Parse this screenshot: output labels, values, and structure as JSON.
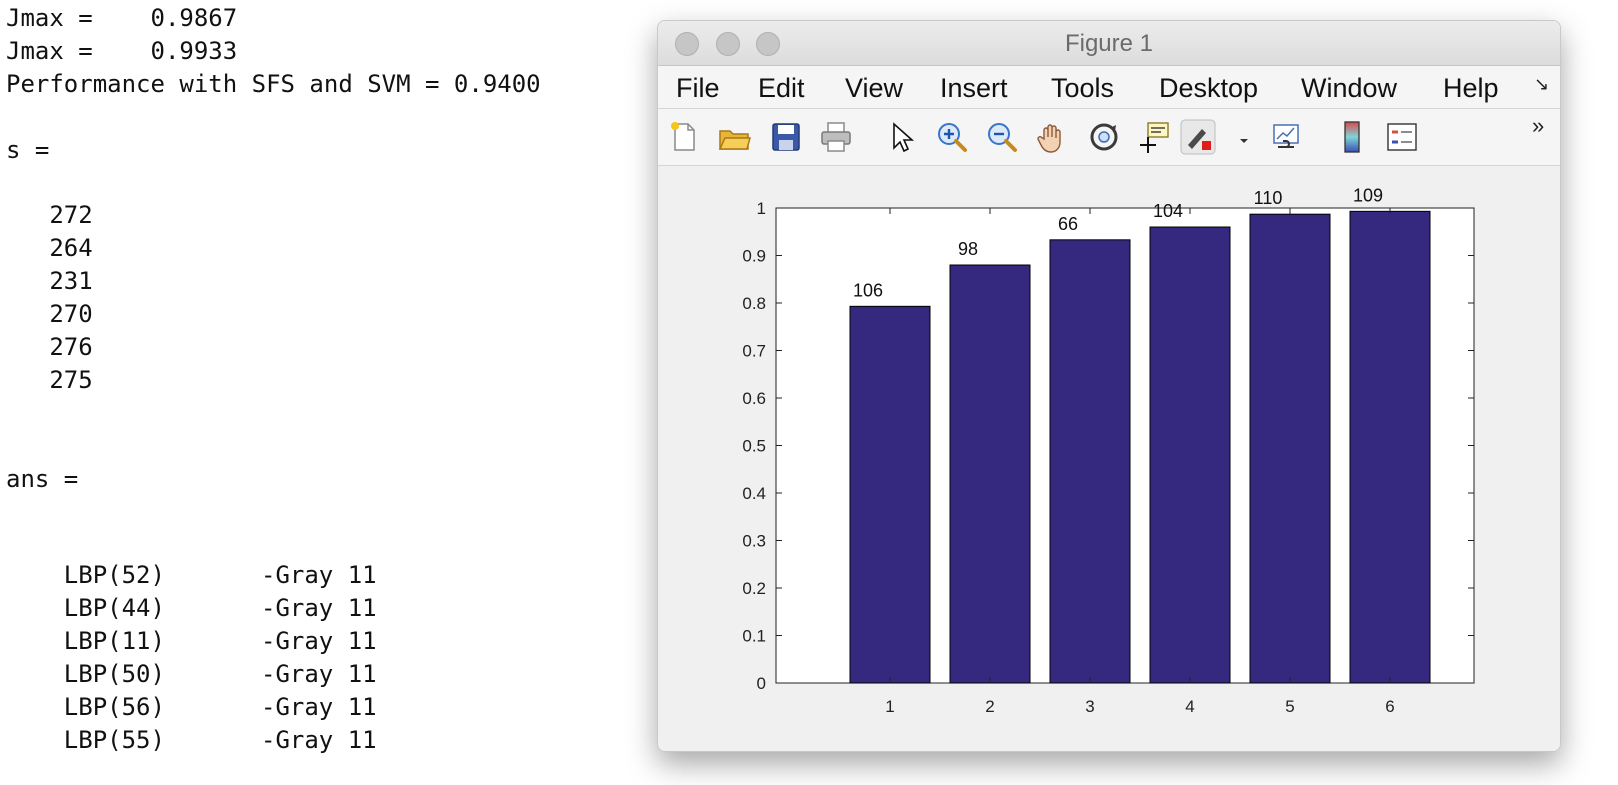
{
  "console": {
    "lines": [
      "Jmax =    0.9867",
      "Jmax =    0.9933",
      "Performance with SFS and SVM = 0.9400",
      "s =",
      "   272",
      "   264",
      "   231",
      "   270",
      "   276",
      "   275",
      "ans ="
    ],
    "feature_rows": [
      {
        "name": "LBP(52)",
        "desc": "-Gray 11"
      },
      {
        "name": "LBP(44)",
        "desc": "-Gray 11"
      },
      {
        "name": "LBP(11)",
        "desc": "-Gray 11"
      },
      {
        "name": "LBP(50)",
        "desc": "-Gray 11"
      },
      {
        "name": "LBP(56)",
        "desc": "-Gray 11"
      },
      {
        "name": "LBP(55)",
        "desc": "-Gray 11"
      }
    ]
  },
  "window": {
    "title": "Figure 1",
    "menu": [
      "File",
      "Edit",
      "View",
      "Insert",
      "Tools",
      "Desktop",
      "Window",
      "Help"
    ],
    "menu_overflow": "↘",
    "toolbar_overflow": "»",
    "tools": [
      {
        "icon": "new-figure-icon",
        "label": ""
      },
      {
        "icon": "open-file-icon",
        "label": ""
      },
      {
        "icon": "save-icon",
        "label": ""
      },
      {
        "icon": "print-icon",
        "label": ""
      },
      {
        "icon": "pointer-icon",
        "label": ""
      },
      {
        "icon": "zoom-in-icon",
        "label": ""
      },
      {
        "icon": "zoom-out-icon",
        "label": ""
      },
      {
        "icon": "pan-hand-icon",
        "label": ""
      },
      {
        "icon": "rotate-3d-icon",
        "label": ""
      },
      {
        "icon": "data-cursor-icon",
        "label": ""
      },
      {
        "icon": "brush-icon",
        "label": ""
      },
      {
        "icon": "link-plot-icon",
        "label": ""
      },
      {
        "icon": "colorbar-icon",
        "label": ""
      },
      {
        "icon": "legend-icon",
        "label": ""
      }
    ]
  },
  "chart_data": {
    "type": "bar",
    "categories": [
      "1",
      "2",
      "3",
      "4",
      "5",
      "6"
    ],
    "values": [
      0.793,
      0.88,
      0.933,
      0.96,
      0.987,
      0.993
    ],
    "data_labels": [
      "106",
      "98",
      "66",
      "104",
      "110",
      "109"
    ],
    "ylim": [
      0,
      1
    ],
    "yticks": [
      "0",
      "0.1",
      "0.2",
      "0.3",
      "0.4",
      "0.5",
      "0.6",
      "0.7",
      "0.8",
      "0.9",
      "1"
    ],
    "bar_color": "#35297f",
    "grid": false,
    "title": "",
    "xlabel": "",
    "ylabel": ""
  }
}
